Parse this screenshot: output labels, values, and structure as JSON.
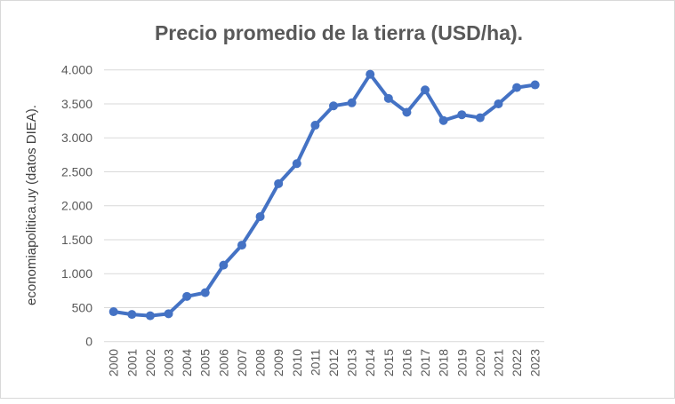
{
  "chart_data": {
    "type": "line",
    "title": "Precio promedio de la tierra (USD/ha).",
    "xlabel": "",
    "ylabel": "economiapolitica.uy (datos DIEA).",
    "categories": [
      "2000",
      "2001",
      "2002",
      "2003",
      "2004",
      "2005",
      "2006",
      "2007",
      "2008",
      "2009",
      "2010",
      "2011",
      "2012",
      "2013",
      "2014",
      "2015",
      "2016",
      "2017",
      "2018",
      "2019",
      "2020",
      "2021",
      "2022",
      "2023"
    ],
    "series": [
      {
        "name": "Precio promedio",
        "color": "#4472c4",
        "values": [
          440,
          400,
          380,
          410,
          665,
          720,
          1125,
          1420,
          1840,
          2325,
          2620,
          3185,
          3470,
          3515,
          3935,
          3580,
          3375,
          3705,
          3255,
          3340,
          3295,
          3500,
          3740,
          3780
        ]
      }
    ],
    "ylim": [
      0,
      4000
    ],
    "yticks": [
      0,
      500,
      1000,
      1500,
      2000,
      2500,
      3000,
      3500,
      4000
    ],
    "ytick_labels": [
      "0",
      "500",
      "1.000",
      "1.500",
      "2.000",
      "2.500",
      "3.000",
      "3.500",
      "4.000"
    ],
    "grid": true,
    "legend": "none"
  }
}
